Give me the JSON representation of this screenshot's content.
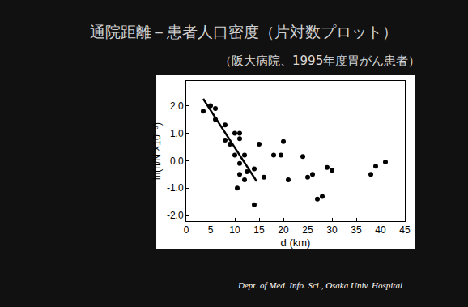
{
  "chart_data": {
    "type": "scatter",
    "title": "通院距離－患者人口密度（片対数プロット）",
    "subtitle": "（阪大病院、1995年度胃がん患者）",
    "annotations": [
      "Dept. of Med. Info. Sci., Osaka Univ. Hospital"
    ],
    "x_label": "d (km)",
    "y_label": "ln(n/N ×10⁻⁵)",
    "xlim": [
      0,
      45
    ],
    "xticks": [
      0,
      5,
      10,
      15,
      20,
      25,
      30,
      35,
      40,
      45
    ],
    "ylim": [
      -2.2,
      2.9
    ],
    "yticks": [
      {
        "value": -2,
        "label": "-2.0"
      },
      {
        "value": -1,
        "label": "-1.0"
      },
      {
        "value": 0,
        "label": "0.0"
      },
      {
        "value": 1,
        "label": "1.0"
      },
      {
        "value": 2,
        "label": "2.0"
      }
    ],
    "grid": false,
    "series": [
      {
        "type": "scatter",
        "color": "#000000",
        "marker": "circle",
        "x": [
          3.5,
          5,
          6,
          6,
          8,
          8,
          9,
          10,
          10,
          11,
          11,
          10.5,
          11,
          11,
          12,
          12,
          12.5,
          14,
          14,
          15,
          16,
          18,
          19.5,
          20,
          21,
          24,
          25,
          26,
          27,
          28,
          29,
          30,
          38,
          39,
          41
        ],
        "values": [
          1.8,
          2.0,
          1.9,
          1.5,
          1.3,
          0.75,
          0.6,
          1.0,
          0.2,
          1.0,
          0.8,
          -1.0,
          -0.1,
          -0.5,
          0.2,
          -0.7,
          -0.4,
          -0.3,
          -1.6,
          0.6,
          -0.6,
          0.2,
          0.2,
          0.7,
          -0.7,
          0.15,
          -0.6,
          -0.5,
          -1.4,
          -1.3,
          -0.25,
          -0.35,
          -0.5,
          -0.2,
          -0.05
        ]
      },
      {
        "type": "line",
        "color": "#000000",
        "line_style": "solid",
        "x": [
          3.5,
          14.5
        ],
        "values": [
          2.25,
          -0.75
        ]
      }
    ]
  }
}
